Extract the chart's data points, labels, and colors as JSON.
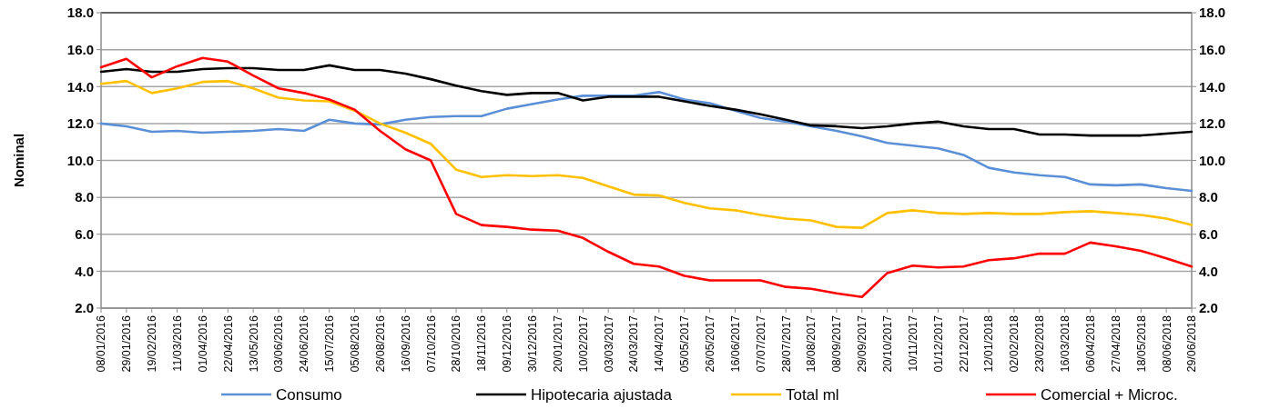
{
  "chart_data": {
    "type": "line",
    "ylabel": "Nominal",
    "x": [
      "2016-01-08",
      "2016-01-29",
      "2016-02-19",
      "2016-03-11",
      "2016-04-01",
      "2016-04-22",
      "2016-05-13",
      "2016-06-03",
      "2016-06-24",
      "2016-07-15",
      "2016-08-05",
      "2016-08-26",
      "2016-09-16",
      "2016-10-07",
      "2016-10-28",
      "2016-11-18",
      "2016-12-09",
      "2016-12-30",
      "2017-01-20",
      "2017-02-10",
      "2017-03-03",
      "2017-03-24",
      "2017-04-14",
      "2017-05-05",
      "2017-05-26",
      "2017-06-16",
      "2017-07-07",
      "2017-07-28",
      "2017-08-18",
      "2017-09-08",
      "2017-09-29",
      "2017-10-20",
      "2017-11-10",
      "2017-12-01",
      "2017-12-22",
      "2018-01-12",
      "2018-02-02",
      "2018-02-23",
      "2018-03-16",
      "2018-04-06",
      "2018-04-27",
      "2018-05-18",
      "2018-06-08",
      "2018-06-29"
    ],
    "xlim": [
      "2016-01-08",
      "2018-06-29"
    ],
    "xticks": [
      {
        "value": "2016-01-08",
        "label": "08/01/2016"
      },
      {
        "value": "2016-01-29",
        "label": "29/01/2016"
      },
      {
        "value": "2016-02-19",
        "label": "19/02/2016"
      },
      {
        "value": "2016-03-11",
        "label": "11/03/2016"
      },
      {
        "value": "2016-04-01",
        "label": "01/04/2016"
      },
      {
        "value": "2016-04-22",
        "label": "22/04/2016"
      },
      {
        "value": "2016-05-13",
        "label": "13/05/2016"
      },
      {
        "value": "2016-06-03",
        "label": "03/06/2016"
      },
      {
        "value": "2016-06-24",
        "label": "24/06/2016"
      },
      {
        "value": "2016-07-15",
        "label": "15/07/2016"
      },
      {
        "value": "2016-08-05",
        "label": "05/08/2016"
      },
      {
        "value": "2016-08-26",
        "label": "26/08/2016"
      },
      {
        "value": "2016-09-16",
        "label": "16/09/2016"
      },
      {
        "value": "2016-10-07",
        "label": "07/10/2016"
      },
      {
        "value": "2016-10-28",
        "label": "28/10/2016"
      },
      {
        "value": "2016-11-18",
        "label": "18/11/2016"
      },
      {
        "value": "2016-12-09",
        "label": "09/12/2016"
      },
      {
        "value": "2016-12-30",
        "label": "30/12/2016"
      },
      {
        "value": "2017-01-20",
        "label": "20/01/2017"
      },
      {
        "value": "2017-02-10",
        "label": "10/02/2017"
      },
      {
        "value": "2017-03-03",
        "label": "03/03/2017"
      },
      {
        "value": "2017-03-24",
        "label": "24/03/2017"
      },
      {
        "value": "2017-04-14",
        "label": "14/04/2017"
      },
      {
        "value": "2017-05-05",
        "label": "05/05/2017"
      },
      {
        "value": "2017-05-26",
        "label": "26/05/2017"
      },
      {
        "value": "2017-06-16",
        "label": "16/06/2017"
      },
      {
        "value": "2017-07-07",
        "label": "07/07/2017"
      },
      {
        "value": "2017-07-28",
        "label": "28/07/2017"
      },
      {
        "value": "2017-08-18",
        "label": "18/08/2017"
      },
      {
        "value": "2017-09-08",
        "label": "08/09/2017"
      },
      {
        "value": "2017-09-29",
        "label": "29/09/2017"
      },
      {
        "value": "2017-10-20",
        "label": "20/10/2017"
      },
      {
        "value": "2017-11-10",
        "label": "10/11/2017"
      },
      {
        "value": "2017-12-01",
        "label": "01/12/2017"
      },
      {
        "value": "2017-12-22",
        "label": "22/12/2017"
      },
      {
        "value": "2018-01-12",
        "label": "12/01/2018"
      },
      {
        "value": "2018-02-02",
        "label": "02/02/2018"
      },
      {
        "value": "2018-02-23",
        "label": "23/02/2018"
      },
      {
        "value": "2018-03-16",
        "label": "16/03/2018"
      },
      {
        "value": "2018-04-06",
        "label": "06/04/2018"
      },
      {
        "value": "2018-04-27",
        "label": "27/04/2018"
      },
      {
        "value": "2018-05-18",
        "label": "18/05/2018"
      },
      {
        "value": "2018-06-08",
        "label": "08/06/2018"
      },
      {
        "value": "2018-06-29",
        "label": "29/06/2018"
      }
    ],
    "ylim": [
      2,
      18
    ],
    "yticks": [
      {
        "value": 2,
        "label": "2.0"
      },
      {
        "value": 4,
        "label": "4.0"
      },
      {
        "value": 6,
        "label": "6.0"
      },
      {
        "value": 8,
        "label": "8.0"
      },
      {
        "value": 10,
        "label": "10.0"
      },
      {
        "value": 12,
        "label": "12.0"
      },
      {
        "value": 14,
        "label": "14.0"
      },
      {
        "value": 16,
        "label": "16.0"
      },
      {
        "value": 18,
        "label": "18.0"
      }
    ],
    "y2lim": [
      2,
      18
    ],
    "y2ticks": [
      {
        "value": 2,
        "label": "2.0"
      },
      {
        "value": 4,
        "label": "4.0"
      },
      {
        "value": 6,
        "label": "6.0"
      },
      {
        "value": 8,
        "label": "8.0"
      },
      {
        "value": 10,
        "label": "10.0"
      },
      {
        "value": 12,
        "label": "12.0"
      },
      {
        "value": 14,
        "label": "14.0"
      },
      {
        "value": 16,
        "label": "16.0"
      },
      {
        "value": 18,
        "label": "18.0"
      }
    ],
    "grid": "y",
    "legend": "bottom",
    "series": [
      {
        "name": "Consumo",
        "color": "#5b8fd6",
        "values": [
          12.0,
          11.85,
          11.55,
          11.6,
          11.5,
          11.55,
          11.6,
          11.7,
          11.6,
          12.2,
          12.0,
          11.95,
          12.2,
          12.35,
          12.4,
          12.4,
          12.8,
          13.05,
          13.3,
          13.5,
          13.5,
          13.5,
          13.7,
          13.3,
          13.1,
          12.7,
          12.3,
          12.1,
          11.85,
          11.6,
          11.3,
          10.95,
          10.8,
          10.65,
          10.3,
          9.6,
          9.35,
          9.2,
          9.1,
          8.7,
          8.65,
          8.7,
          8.5,
          8.35
        ]
      },
      {
        "name": "Hipotecaria ajustada",
        "color": "#000000",
        "values": [
          14.8,
          14.95,
          14.8,
          14.8,
          14.95,
          15.0,
          15.0,
          14.9,
          14.9,
          15.15,
          14.9,
          14.9,
          14.7,
          14.4,
          14.05,
          13.75,
          13.55,
          13.65,
          13.65,
          13.25,
          13.45,
          13.45,
          13.45,
          13.2,
          12.95,
          12.75,
          12.5,
          12.2,
          11.9,
          11.85,
          11.75,
          11.85,
          12.0,
          12.1,
          11.85,
          11.7,
          11.7,
          11.4,
          11.4,
          11.35,
          11.35,
          11.35,
          11.45,
          11.55
        ]
      },
      {
        "name": "Total ml",
        "color": "#ffc000",
        "values": [
          14.15,
          14.3,
          13.65,
          13.9,
          14.25,
          14.3,
          13.9,
          13.4,
          13.25,
          13.2,
          12.7,
          12.0,
          11.5,
          10.9,
          9.5,
          9.1,
          9.2,
          9.15,
          9.2,
          9.05,
          8.6,
          8.15,
          8.1,
          7.7,
          7.4,
          7.3,
          7.05,
          6.85,
          6.75,
          6.4,
          6.35,
          7.15,
          7.3,
          7.15,
          7.1,
          7.15,
          7.1,
          7.1,
          7.2,
          7.25,
          7.15,
          7.05,
          6.85,
          6.5
        ]
      },
      {
        "name": "Comercial + Microc.",
        "color": "#ff0000",
        "values": [
          15.05,
          15.5,
          14.5,
          15.1,
          15.55,
          15.35,
          14.6,
          13.9,
          13.65,
          13.3,
          12.75,
          11.6,
          10.6,
          10.0,
          7.1,
          6.5,
          6.4,
          6.25,
          6.2,
          5.8,
          5.05,
          4.4,
          4.25,
          3.75,
          3.5,
          3.5,
          3.5,
          3.15,
          3.05,
          2.8,
          2.6,
          3.9,
          4.3,
          4.2,
          4.25,
          4.6,
          4.7,
          4.95,
          4.95,
          5.55,
          5.35,
          5.1,
          4.7,
          4.25
        ]
      }
    ]
  }
}
